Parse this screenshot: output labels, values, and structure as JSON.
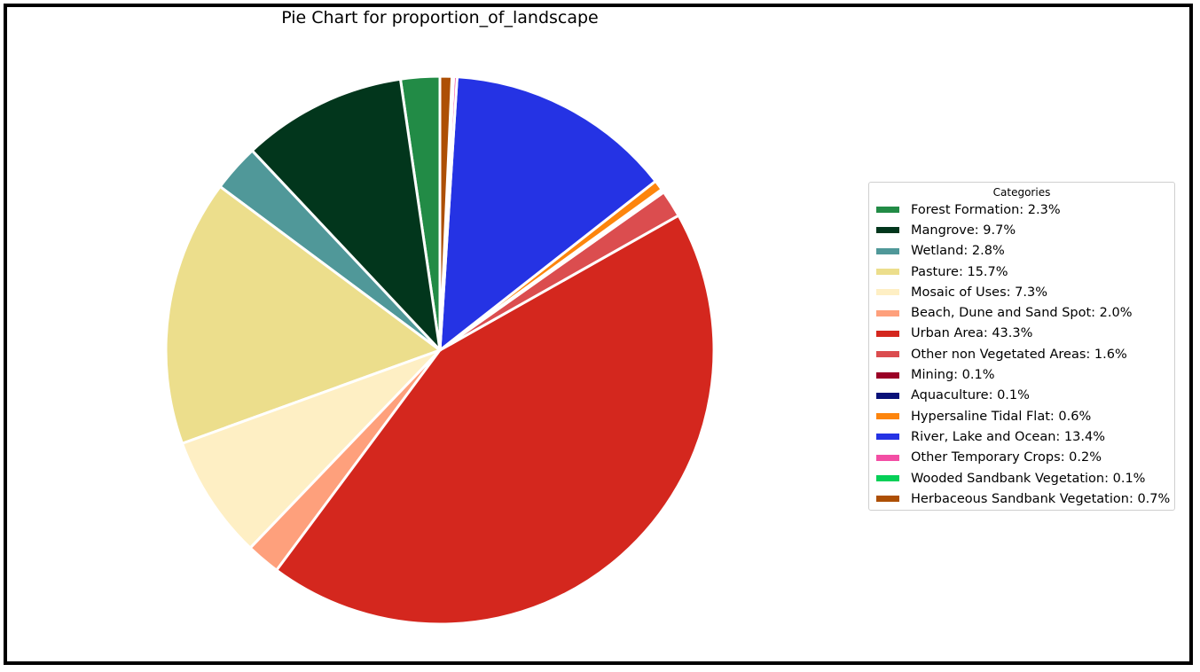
{
  "chart_data": {
    "type": "pie",
    "title": "Pie Chart for proportion_of_landscape",
    "legend_title": "Categories",
    "legend_position": "right",
    "start_angle": 90,
    "direction": "clockwise",
    "slices": [
      {
        "label": "Forest Formation: 2.3%",
        "value": 2.3,
        "color": "#228b46"
      },
      {
        "label": "Mangrove: 9.7%",
        "value": 9.7,
        "color": "#02361c"
      },
      {
        "label": "Wetland: 2.8%",
        "value": 2.8,
        "color": "#509899"
      },
      {
        "label": "Pasture: 15.7%",
        "value": 15.7,
        "color": "#ecde8c"
      },
      {
        "label": "Mosaic of Uses: 7.3%",
        "value": 7.3,
        "color": "#feefc4"
      },
      {
        "label": "Beach, Dune and Sand Spot: 2.0%",
        "value": 2.0,
        "color": "#fea07c"
      },
      {
        "label": "Urban Area: 43.3%",
        "value": 43.3,
        "color": "#d4271e"
      },
      {
        "label": "Other non Vegetated Areas: 1.6%",
        "value": 1.6,
        "color": "#db4d4f"
      },
      {
        "label": "Mining: 0.1%",
        "value": 0.1,
        "color": "#9b0026"
      },
      {
        "label": "Aquaculture: 0.1%",
        "value": 0.1,
        "color": "#091178"
      },
      {
        "label": "Hypersaline Tidal Flat: 0.6%",
        "value": 0.6,
        "color": "#fd850d"
      },
      {
        "label": "River, Lake and Ocean: 13.4%",
        "value": 13.4,
        "color": "#2533e4"
      },
      {
        "label": "Other Temporary Crops: 0.2%",
        "value": 0.2,
        "color": "#f34ea4"
      },
      {
        "label": "Wooded Sandbank Vegetation: 0.1%",
        "value": 0.1,
        "color": "#05d057"
      },
      {
        "label": "Herbaceous Sandbank Vegetation: 0.7%",
        "value": 0.7,
        "color": "#ad4f05"
      }
    ]
  }
}
